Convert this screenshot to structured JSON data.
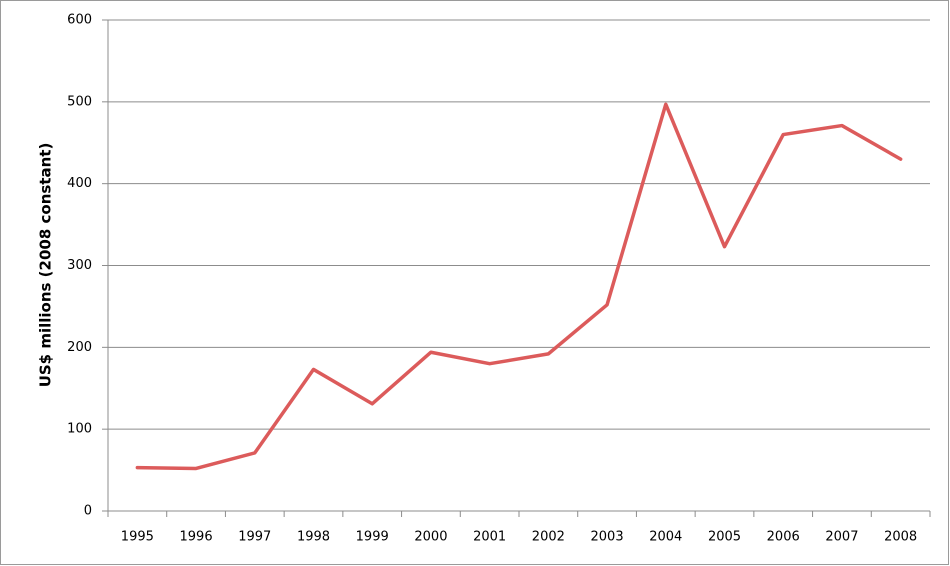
{
  "chart_data": {
    "type": "line",
    "y_label": "US$ millions (2008 constant)",
    "categories": [
      "1995",
      "1996",
      "1997",
      "1998",
      "1999",
      "2000",
      "2001",
      "2002",
      "2003",
      "2004",
      "2005",
      "2006",
      "2007",
      "2008"
    ],
    "values": [
      53,
      52,
      71,
      173,
      131,
      194,
      180,
      192,
      252,
      497,
      323,
      460,
      471,
      430
    ],
    "color": "#dc5b5b",
    "ylim": [
      0,
      600
    ],
    "yticks": [
      0,
      100,
      200,
      300,
      400,
      500,
      600
    ],
    "grid": true
  }
}
